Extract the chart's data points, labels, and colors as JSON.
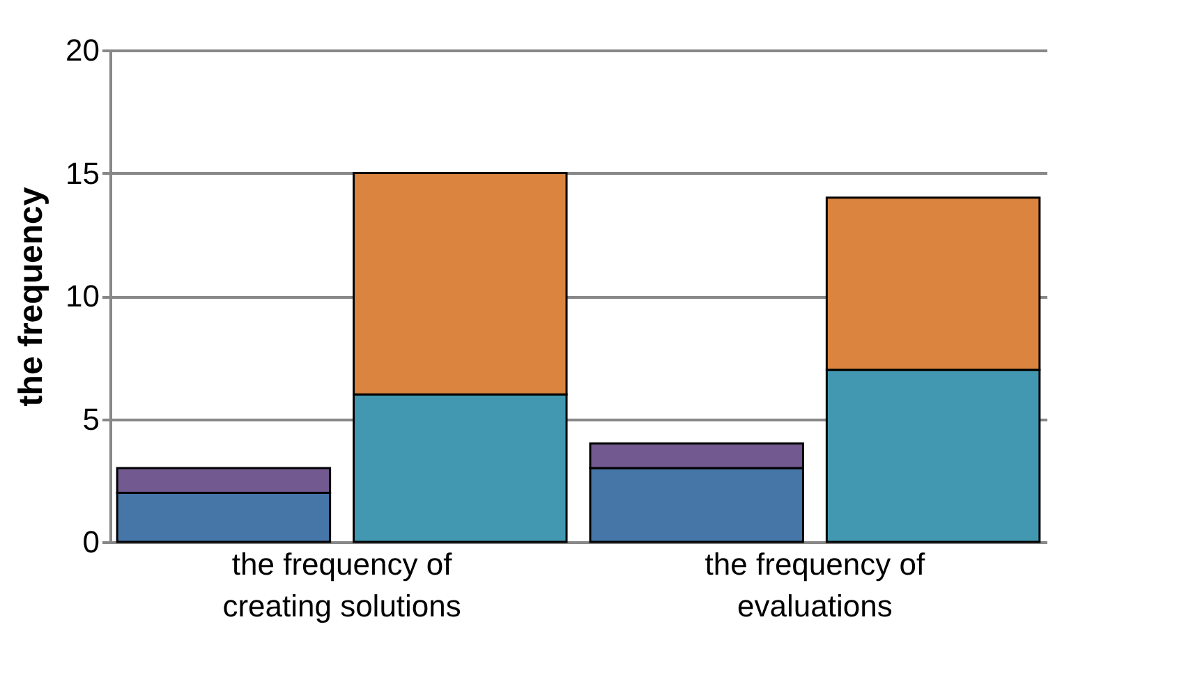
{
  "chart_data": {
    "type": "bar",
    "ylabel": "the frequency",
    "categories": [
      "the frequency of creating solutions",
      null,
      "the frequency of evaluations",
      null
    ],
    "stacked": true,
    "series": [
      {
        "color": "#4675a8",
        "values": [
          2,
          null,
          3,
          null
        ]
      },
      {
        "color": "#725a90",
        "values": [
          1,
          null,
          1,
          null
        ]
      },
      {
        "color": "#4298b0",
        "values": [
          null,
          6,
          null,
          7
        ]
      },
      {
        "color": "#db843f",
        "values": [
          null,
          9,
          null,
          7
        ]
      }
    ],
    "ylim": [
      0,
      20
    ],
    "yticks": [
      0,
      5,
      10,
      15,
      20
    ],
    "grid": "y",
    "legend": false
  }
}
